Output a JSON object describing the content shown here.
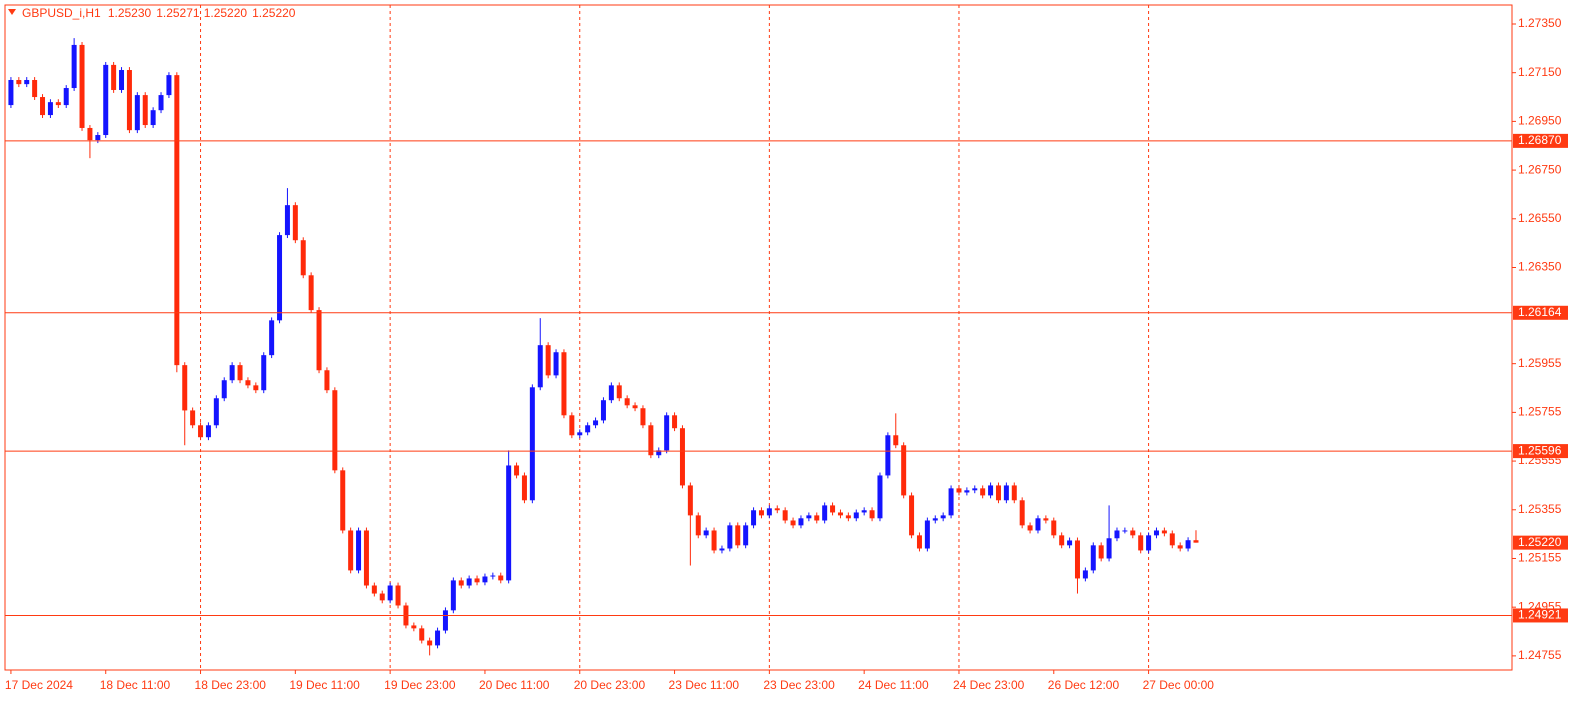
{
  "chart_data": {
    "type": "candlestick",
    "title": "GBPUSD_i,H1",
    "title_values": [
      "1.25230",
      "1.25271",
      "1.25220",
      "1.25220"
    ],
    "up_color": "#1414ff",
    "down_color": "#ff2a0a",
    "grid": true,
    "xlim": [
      -0.75,
      190
    ],
    "ylim": [
      1.24697,
      1.27428
    ],
    "xticks": [
      {
        "value": 0,
        "label": "17 Dec 2024"
      },
      {
        "value": 12,
        "label": "18 Dec 11:00"
      },
      {
        "value": 24,
        "label": "18 Dec 23:00"
      },
      {
        "value": 36,
        "label": "19 Dec 11:00"
      },
      {
        "value": 48,
        "label": "19 Dec 23:00"
      },
      {
        "value": 60,
        "label": "20 Dec 11:00"
      },
      {
        "value": 72,
        "label": "20 Dec 23:00"
      },
      {
        "value": 84,
        "label": "23 Dec 11:00"
      },
      {
        "value": 96,
        "label": "23 Dec 23:00"
      },
      {
        "value": 108,
        "label": "24 Dec 11:00"
      },
      {
        "value": 120,
        "label": "24 Dec 23:00"
      },
      {
        "value": 132,
        "label": "26 Dec 12:00"
      },
      {
        "value": 144,
        "label": "27 Dec 00:00"
      }
    ],
    "yticks": [
      {
        "value": 1.2735,
        "label": "1.27350"
      },
      {
        "value": 1.2715,
        "label": "1.27150"
      },
      {
        "value": 1.2695,
        "label": "1.26950"
      },
      {
        "value": 1.2675,
        "label": "1.26750"
      },
      {
        "value": 1.2655,
        "label": "1.26550"
      },
      {
        "value": 1.2635,
        "label": "1.26350"
      },
      1.25955,
      1.25755,
      1.25555,
      1.25355,
      1.25155,
      1.24955,
      1.24755
    ],
    "levels": [
      {
        "value": 1.2687,
        "label": "1.26870"
      },
      1.26164,
      1.25596,
      1.24921
    ],
    "current_price": {
      "value": 1.2522,
      "label": "1.25220"
    },
    "open": [
      1.27017,
      1.2712,
      1.27103,
      1.2712,
      1.2705,
      1.26976,
      1.27029,
      1.27017,
      1.27087,
      1.27264,
      1.26923,
      1.26873,
      1.26894,
      1.27182,
      1.27079,
      1.27161,
      1.26914,
      1.27058,
      1.26935,
      1.26996,
      1.27058,
      1.2714,
      1.25949,
      1.25763,
      1.25702,
      1.25653,
      1.25702,
      1.25813,
      1.25887,
      1.25949,
      1.25887,
      1.25866,
      1.25846,
      1.2599,
      1.26133,
      1.26483,
      1.26606,
      1.26462,
      1.26318,
      1.26175,
      1.25928,
      1.25846,
      1.25517,
      1.2527,
      1.25106,
      1.2527,
      1.25044,
      1.25011,
      1.24983,
      1.25044,
      1.24962,
      1.2488,
      1.24868,
      1.24818,
      1.24798,
      1.24859,
      1.24942,
      1.25065,
      1.25044,
      1.25073,
      1.25057,
      1.25081,
      1.25085,
      1.25065,
      1.25537,
      1.25496,
      1.25394,
      1.25858,
      1.26031,
      1.25907,
      1.26002,
      1.25743,
      1.25661,
      1.25673,
      1.25702,
      1.25722,
      1.25805,
      1.25866,
      1.25813,
      1.25784,
      1.25772,
      1.25702,
      1.25579,
      1.25599,
      1.25743,
      1.2569,
      1.25455,
      1.25332,
      1.2525,
      1.2527,
      1.25188,
      1.25196,
      1.25291,
      1.25209,
      1.25291,
      1.25353,
      1.25332,
      1.25361,
      1.25353,
      1.25311,
      1.25291,
      1.2532,
      1.25332,
      1.25311,
      1.25373,
      1.25344,
      1.25332,
      1.2532,
      1.25344,
      1.25353,
      1.2532,
      1.25496,
      1.25661,
      1.2562,
      1.25414,
      1.2525,
      1.25196,
      1.25311,
      1.2532,
      1.25332,
      1.25443,
      1.25426,
      1.25435,
      1.25443,
      1.25414,
      1.25455,
      1.25394,
      1.25455,
      1.25394,
      1.25291,
      1.2527,
      1.2532,
      1.25311,
      1.2525,
      1.25209,
      1.25229,
      1.25073,
      1.25106,
      1.25209,
      1.25155,
      1.25238,
      1.2527,
      1.2527,
      1.2525,
      1.25188,
      1.2525,
      1.2527,
      1.25258,
      1.25209,
      1.25196,
      1.2523
    ],
    "high": [
      1.27132,
      1.27132,
      1.27132,
      1.27132,
      1.27062,
      1.27041,
      1.27041,
      1.27099,
      1.27292,
      1.27276,
      1.26935,
      1.26906,
      1.27194,
      1.27194,
      1.27173,
      1.27173,
      1.2707,
      1.2707,
      1.27008,
      1.2707,
      1.27152,
      1.27152,
      1.25961,
      1.25775,
      1.25714,
      1.25714,
      1.25825,
      1.25899,
      1.25961,
      1.25961,
      1.25899,
      1.25878,
      1.26002,
      1.26145,
      1.26495,
      1.26676,
      1.26618,
      1.26474,
      1.2633,
      1.26187,
      1.2594,
      1.25858,
      1.25529,
      1.25282,
      1.25282,
      1.25282,
      1.25056,
      1.25023,
      1.25056,
      1.25056,
      1.24974,
      1.24892,
      1.2488,
      1.2483,
      1.24871,
      1.24954,
      1.25077,
      1.25077,
      1.25085,
      1.25085,
      1.25093,
      1.25097,
      1.25097,
      1.25599,
      1.25549,
      1.25508,
      1.2587,
      1.26142,
      1.26043,
      1.26014,
      1.26014,
      1.25755,
      1.25685,
      1.25714,
      1.25734,
      1.25817,
      1.25878,
      1.25878,
      1.25825,
      1.25796,
      1.25784,
      1.25714,
      1.25611,
      1.25755,
      1.25755,
      1.25702,
      1.25467,
      1.25344,
      1.25282,
      1.25282,
      1.25208,
      1.25303,
      1.25303,
      1.25303,
      1.25365,
      1.25365,
      1.25373,
      1.25373,
      1.25365,
      1.25323,
      1.25332,
      1.25344,
      1.25344,
      1.25385,
      1.25385,
      1.25356,
      1.25344,
      1.25356,
      1.25365,
      1.25365,
      1.25508,
      1.25673,
      1.25751,
      1.25632,
      1.25426,
      1.25262,
      1.25323,
      1.25332,
      1.25344,
      1.25455,
      1.25455,
      1.25447,
      1.25455,
      1.25455,
      1.25467,
      1.25467,
      1.25467,
      1.25467,
      1.25406,
      1.25303,
      1.25332,
      1.25332,
      1.25323,
      1.25262,
      1.25241,
      1.25241,
      1.25118,
      1.25221,
      1.25221,
      1.25373,
      1.25282,
      1.25282,
      1.25282,
      1.25262,
      1.25262,
      1.25282,
      1.25282,
      1.2527,
      1.25221,
      1.25242,
      1.25271
    ],
    "low": [
      1.27005,
      1.27091,
      1.27091,
      1.27038,
      1.26964,
      1.26964,
      1.27005,
      1.27005,
      1.27075,
      1.26911,
      1.26799,
      1.26861,
      1.26882,
      1.27067,
      1.27067,
      1.26902,
      1.26902,
      1.26923,
      1.26923,
      1.26984,
      1.27046,
      1.2592,
      1.2562,
      1.2569,
      1.25641,
      1.25641,
      1.2569,
      1.25801,
      1.25875,
      1.25875,
      1.25854,
      1.25834,
      1.25834,
      1.25978,
      1.26121,
      1.26471,
      1.2645,
      1.26306,
      1.26163,
      1.25916,
      1.25834,
      1.25505,
      1.25258,
      1.25094,
      1.25094,
      1.25032,
      1.24999,
      1.24971,
      1.24971,
      1.2495,
      1.24868,
      1.24856,
      1.24806,
      1.24757,
      1.24786,
      1.24847,
      1.2493,
      1.25032,
      1.25032,
      1.25045,
      1.25045,
      1.25069,
      1.25053,
      1.25053,
      1.25484,
      1.25382,
      1.25382,
      1.25846,
      1.25895,
      1.25895,
      1.25731,
      1.25649,
      1.25649,
      1.25661,
      1.2569,
      1.2571,
      1.25793,
      1.25801,
      1.25772,
      1.2576,
      1.2569,
      1.25567,
      1.25567,
      1.25587,
      1.25678,
      1.25443,
      1.25126,
      1.25238,
      1.25238,
      1.25176,
      1.25176,
      1.25184,
      1.25197,
      1.25197,
      1.25279,
      1.2532,
      1.2532,
      1.25341,
      1.25299,
      1.25279,
      1.25279,
      1.25308,
      1.25299,
      1.25299,
      1.25332,
      1.2532,
      1.25308,
      1.25308,
      1.25332,
      1.25308,
      1.25308,
      1.25484,
      1.25608,
      1.25402,
      1.25238,
      1.25184,
      1.25184,
      1.25299,
      1.25308,
      1.2532,
      1.25414,
      1.25414,
      1.25423,
      1.25402,
      1.25402,
      1.25382,
      1.25382,
      1.25382,
      1.25279,
      1.25258,
      1.25258,
      1.25299,
      1.25238,
      1.25197,
      1.25197,
      1.25011,
      1.25061,
      1.25094,
      1.25143,
      1.25143,
      1.25226,
      1.25258,
      1.25238,
      1.25176,
      1.25176,
      1.25238,
      1.25246,
      1.25197,
      1.25184,
      1.25184,
      1.2522
    ],
    "close": [
      1.2712,
      1.27103,
      1.2712,
      1.2705,
      1.26976,
      1.27029,
      1.27017,
      1.27087,
      1.27264,
      1.26923,
      1.26873,
      1.26894,
      1.27182,
      1.27079,
      1.27161,
      1.26914,
      1.27058,
      1.26935,
      1.26996,
      1.27058,
      1.2714,
      1.25949,
      1.25763,
      1.25702,
      1.25653,
      1.25702,
      1.25813,
      1.25887,
      1.25949,
      1.25887,
      1.25866,
      1.25846,
      1.2599,
      1.26133,
      1.26483,
      1.26606,
      1.26462,
      1.26318,
      1.26175,
      1.25928,
      1.25846,
      1.25517,
      1.2527,
      1.25106,
      1.2527,
      1.25044,
      1.25011,
      1.24983,
      1.25044,
      1.24962,
      1.2488,
      1.24868,
      1.24818,
      1.24798,
      1.24859,
      1.24942,
      1.25065,
      1.25044,
      1.25073,
      1.25057,
      1.25081,
      1.25085,
      1.25065,
      1.25537,
      1.25496,
      1.25394,
      1.25858,
      1.26031,
      1.25907,
      1.26002,
      1.25743,
      1.25661,
      1.25673,
      1.25702,
      1.25722,
      1.25805,
      1.25866,
      1.25813,
      1.25784,
      1.25772,
      1.25702,
      1.25579,
      1.25599,
      1.25743,
      1.2569,
      1.25455,
      1.25332,
      1.2525,
      1.2527,
      1.25188,
      1.25196,
      1.25291,
      1.25209,
      1.25291,
      1.25353,
      1.25332,
      1.25361,
      1.25353,
      1.25311,
      1.25291,
      1.2532,
      1.25332,
      1.25311,
      1.25373,
      1.25344,
      1.25332,
      1.2532,
      1.25344,
      1.25353,
      1.2532,
      1.25496,
      1.25661,
      1.2562,
      1.25414,
      1.2525,
      1.25196,
      1.25311,
      1.2532,
      1.25332,
      1.25443,
      1.25426,
      1.25435,
      1.25443,
      1.25414,
      1.25455,
      1.25394,
      1.25455,
      1.25394,
      1.25291,
      1.2527,
      1.2532,
      1.25311,
      1.2525,
      1.25209,
      1.25229,
      1.25073,
      1.25106,
      1.25209,
      1.25155,
      1.25238,
      1.2527,
      1.2527,
      1.2525,
      1.25188,
      1.2525,
      1.2527,
      1.25258,
      1.25209,
      1.25196,
      1.2523,
      1.2522
    ]
  }
}
